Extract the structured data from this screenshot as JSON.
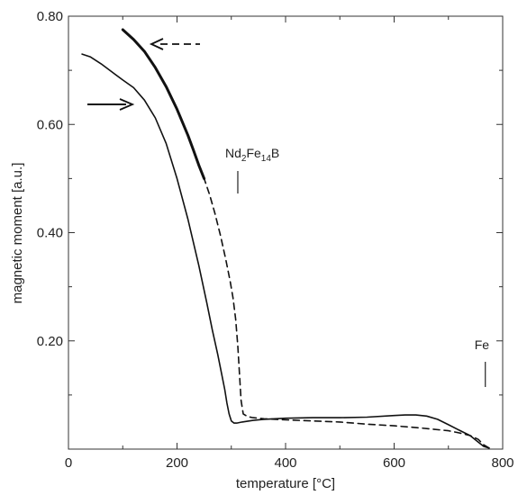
{
  "chart_data": {
    "type": "line",
    "xlabel": "temperature [°C]",
    "ylabel": "magnetic moment [a.u.]",
    "xlim": [
      0,
      800
    ],
    "ylim": [
      0,
      0.8
    ],
    "x_ticks": [
      0,
      200,
      400,
      600,
      800
    ],
    "y_ticks": [
      0.2,
      0.4,
      0.6,
      0.8
    ],
    "x_tick_labels": [
      "0",
      "200",
      "400",
      "600",
      "800"
    ],
    "y_tick_labels": [
      "0.20",
      "0.40",
      "0.60",
      "0.80"
    ],
    "grid": false,
    "series": [
      {
        "style": "solid",
        "direction": "heating",
        "x": [
          25,
          40,
          60,
          80,
          100,
          120,
          140,
          160,
          180,
          200,
          220,
          240,
          255,
          265,
          275,
          282,
          288,
          292,
          296,
          300,
          305,
          310,
          320,
          340,
          360,
          400,
          450,
          500,
          550,
          600,
          620,
          640,
          660,
          680,
          700,
          720,
          740,
          755,
          765,
          775
        ],
        "y": [
          0.73,
          0.725,
          0.712,
          0.697,
          0.682,
          0.668,
          0.645,
          0.612,
          0.565,
          0.5,
          0.425,
          0.34,
          0.27,
          0.22,
          0.175,
          0.14,
          0.11,
          0.085,
          0.065,
          0.052,
          0.048,
          0.048,
          0.05,
          0.053,
          0.055,
          0.057,
          0.058,
          0.058,
          0.059,
          0.062,
          0.063,
          0.063,
          0.061,
          0.055,
          0.045,
          0.035,
          0.025,
          0.013,
          0.005,
          0.002
        ]
      },
      {
        "style": "dashed",
        "direction": "cooling",
        "x": [
          775,
          765,
          755,
          740,
          720,
          700,
          650,
          600,
          550,
          500,
          450,
          400,
          360,
          340,
          330,
          322,
          318,
          315,
          312,
          308,
          303,
          298,
          290,
          280,
          270,
          260,
          250
        ],
        "y": [
          0.002,
          0.008,
          0.018,
          0.025,
          0.03,
          0.034,
          0.039,
          0.043,
          0.046,
          0.05,
          0.052,
          0.054,
          0.056,
          0.058,
          0.06,
          0.065,
          0.09,
          0.14,
          0.19,
          0.24,
          0.28,
          0.31,
          0.35,
          0.395,
          0.435,
          0.47,
          0.5
        ]
      },
      {
        "style": "thick solid",
        "direction": "cooling",
        "x": [
          250,
          240,
          230,
          220,
          200,
          180,
          160,
          140,
          120,
          100
        ],
        "y": [
          0.5,
          0.525,
          0.553,
          0.58,
          0.628,
          0.67,
          0.705,
          0.735,
          0.757,
          0.775
        ]
      }
    ],
    "annotations": [
      {
        "label": "Nd2Fe14B",
        "base": "Nd",
        "sub1": "2",
        "mid": "Fe",
        "sub2": "14",
        "tail": "B",
        "marker_x": 312
      },
      {
        "label": "Fe",
        "marker_x": 768
      }
    ],
    "arrows": [
      {
        "name": "heating-arrow",
        "style": "solid",
        "direction": "right"
      },
      {
        "name": "cooling-arrow",
        "style": "dashed",
        "direction": "left"
      }
    ]
  }
}
